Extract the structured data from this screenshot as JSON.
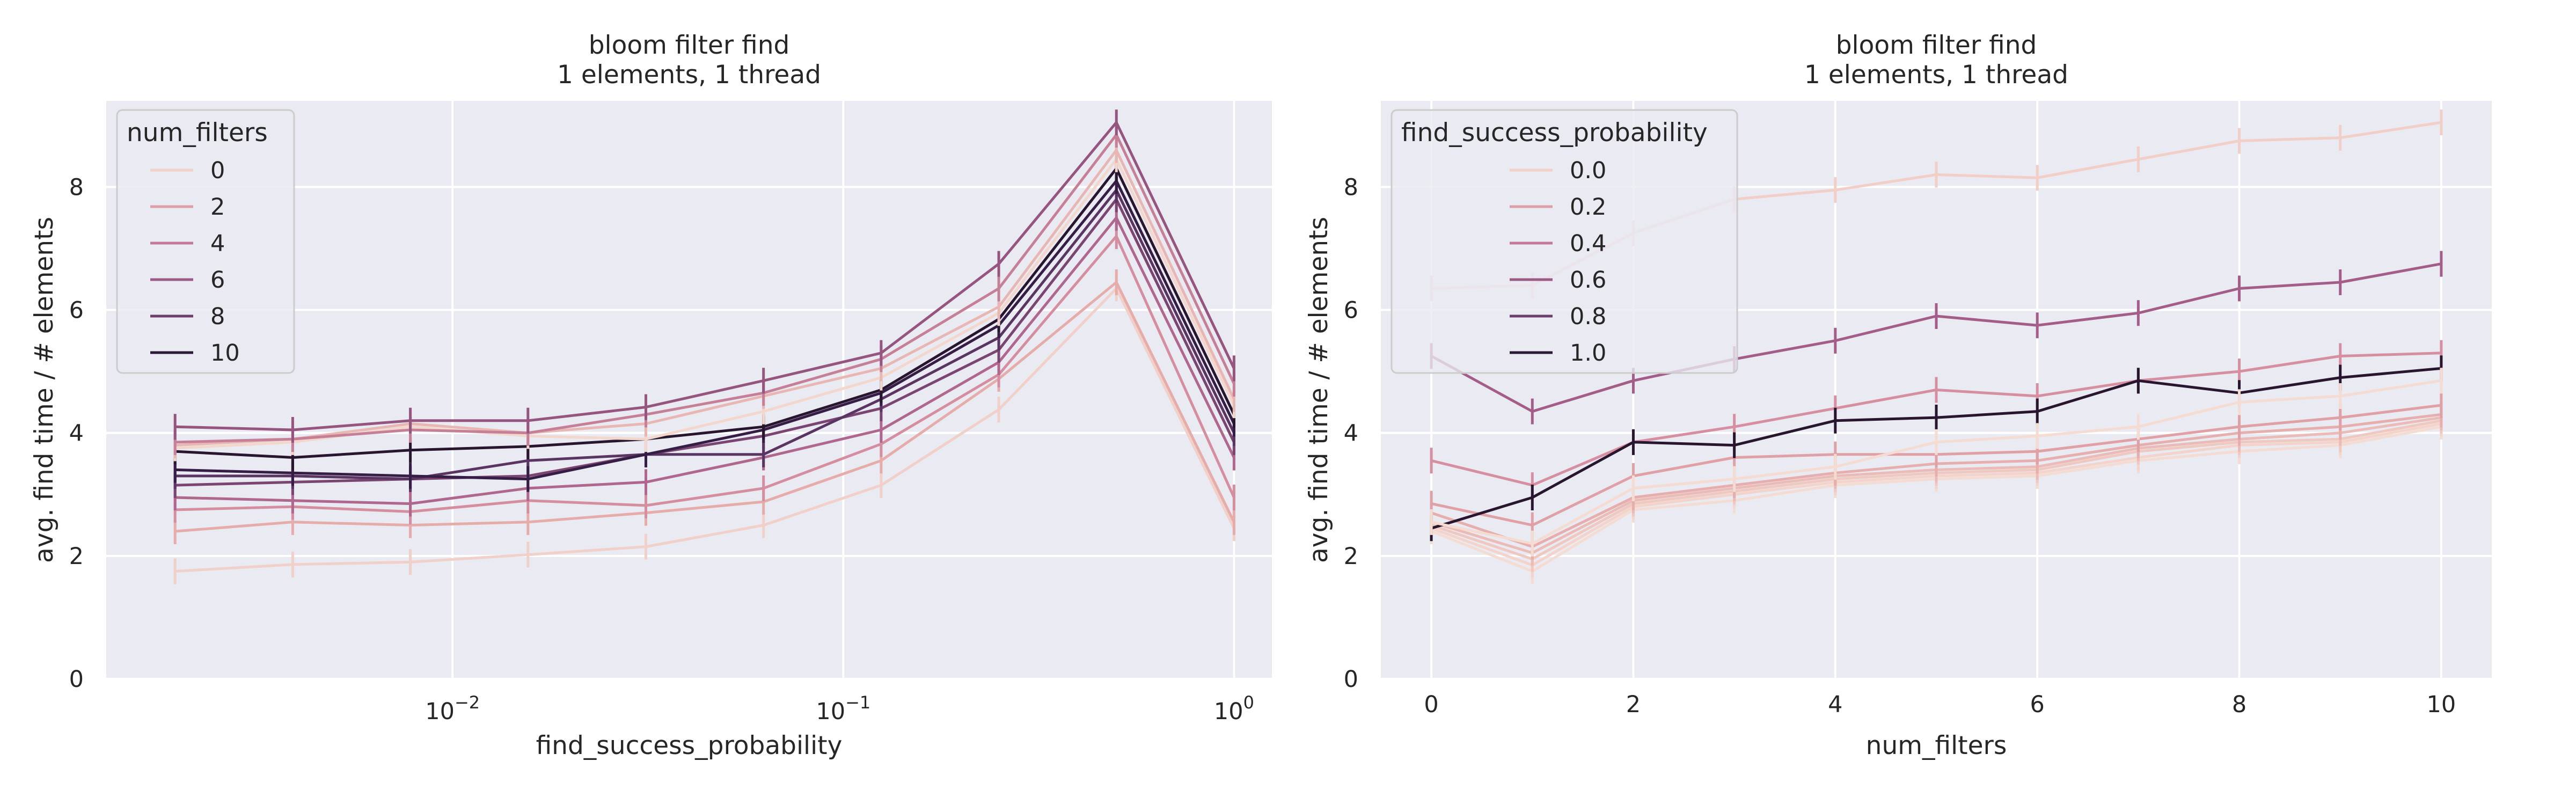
{
  "chart_data": [
    {
      "type": "line",
      "title": [
        "bloom filter find",
        "1 elements, 1 thread"
      ],
      "xlabel": "find_success_probability",
      "ylabel": "avg. find time / # elements",
      "xscale": "log",
      "xlim": [
        0.0013,
        1.25
      ],
      "ylim": [
        0,
        9.4
      ],
      "xticks": [
        {
          "value": 0.01,
          "base": "10",
          "exp": "−2"
        },
        {
          "value": 0.1,
          "base": "10",
          "exp": "−1"
        },
        {
          "value": 1,
          "base": "10",
          "exp": "0"
        }
      ],
      "yticks": [
        0,
        2,
        4,
        6,
        8
      ],
      "grid": true,
      "legend": {
        "title": "num_filters",
        "placement": "top-left",
        "entries": [
          "0",
          "2",
          "4",
          "6",
          "8",
          "10"
        ]
      },
      "colors": [
        "#f0d0c8",
        "#e5acaa",
        "#d48ea0",
        "#b0678e",
        "#7b4572",
        "#5a3562",
        "#351d45",
        "#28162e",
        "#f3d7cd",
        "#e8b7b3",
        "#c58097",
        "#95557f"
      ],
      "x": [
        0.00195,
        0.0039,
        0.0078,
        0.0156,
        0.03125,
        0.0625,
        0.125,
        0.25,
        0.5,
        1
      ],
      "series": [
        {
          "values": [
            1.75,
            1.86,
            1.9,
            2.02,
            2.15,
            2.5,
            3.15,
            4.38,
            6.35,
            2.45
          ]
        },
        {
          "values": [
            2.4,
            2.55,
            2.5,
            2.55,
            2.7,
            2.88,
            3.55,
            4.88,
            6.45,
            2.55
          ]
        },
        {
          "values": [
            2.75,
            2.8,
            2.72,
            2.9,
            2.82,
            3.1,
            3.82,
            4.95,
            7.2,
            2.95
          ]
        },
        {
          "values": [
            2.95,
            2.9,
            2.85,
            3.1,
            3.2,
            3.6,
            4.05,
            5.15,
            7.5,
            3.6
          ]
        },
        {
          "values": [
            3.15,
            3.2,
            3.25,
            3.3,
            3.65,
            3.95,
            4.4,
            5.35,
            7.8,
            3.85
          ]
        },
        {
          "values": [
            3.3,
            3.3,
            3.25,
            3.55,
            3.65,
            3.65,
            4.55,
            5.55,
            7.95,
            4.0
          ]
        },
        {
          "values": [
            3.4,
            3.35,
            3.3,
            3.25,
            3.65,
            4.05,
            4.65,
            5.75,
            8.1,
            4.15
          ]
        },
        {
          "values": [
            3.7,
            3.6,
            3.72,
            3.78,
            3.9,
            4.1,
            4.7,
            5.85,
            8.3,
            4.3
          ]
        },
        {
          "values": [
            3.75,
            3.85,
            4.1,
            3.95,
            3.9,
            4.35,
            4.9,
            5.95,
            8.45,
            4.45
          ]
        },
        {
          "values": [
            3.8,
            3.9,
            4.15,
            4.0,
            4.15,
            4.6,
            5.05,
            6.05,
            8.6,
            4.55
          ]
        },
        {
          "values": [
            3.85,
            3.9,
            4.05,
            4.0,
            4.3,
            4.65,
            5.2,
            6.35,
            8.85,
            4.8
          ]
        },
        {
          "values": [
            4.1,
            4.05,
            4.2,
            4.2,
            4.42,
            4.85,
            5.3,
            6.75,
            9.05,
            5.05
          ]
        }
      ]
    },
    {
      "type": "line",
      "title": [
        "bloom filter find",
        "1 elements, 1 thread"
      ],
      "xlabel": "num_filters",
      "ylabel": "avg. find time / # elements",
      "xscale": "linear",
      "xlim": [
        -0.5,
        10.5
      ],
      "ylim": [
        0,
        9.4
      ],
      "xticks": [
        0,
        2,
        4,
        6,
        8,
        10
      ],
      "yticks": [
        0,
        2,
        4,
        6,
        8
      ],
      "grid": true,
      "legend": {
        "title": "find_success_probability",
        "placement": "top-left",
        "entries": [
          "0.0",
          "0.2",
          "0.4",
          "0.6",
          "0.8",
          "1.0"
        ]
      },
      "colors": [
        "#f5dcd2",
        "#f3d3ca",
        "#efc8c0",
        "#ebbcb7",
        "#e6afae",
        "#dfa0a6",
        "#d58fa1",
        "#a45d88",
        "#28162e",
        "#f1cec6"
      ],
      "x": [
        0,
        1,
        2,
        3,
        4,
        5,
        6,
        7,
        8,
        9,
        10
      ],
      "series": [
        {
          "values": [
            2.4,
            1.75,
            2.75,
            2.9,
            3.15,
            3.25,
            3.3,
            3.55,
            3.7,
            3.8,
            4.1
          ]
        },
        {
          "values": [
            2.45,
            1.85,
            2.8,
            3.0,
            3.2,
            3.3,
            3.35,
            3.6,
            3.8,
            3.85,
            4.15
          ]
        },
        {
          "values": [
            2.5,
            1.95,
            2.85,
            3.05,
            3.25,
            3.35,
            3.4,
            3.7,
            3.85,
            3.9,
            4.2
          ]
        },
        {
          "values": [
            2.55,
            2.05,
            2.9,
            3.1,
            3.3,
            3.4,
            3.45,
            3.75,
            3.9,
            4.0,
            4.25
          ]
        },
        {
          "values": [
            2.7,
            2.15,
            2.95,
            3.15,
            3.35,
            3.5,
            3.55,
            3.8,
            4.0,
            4.1,
            4.3
          ]
        },
        {
          "values": [
            2.85,
            2.5,
            3.3,
            3.6,
            3.65,
            3.65,
            3.7,
            3.9,
            4.1,
            4.25,
            4.45
          ]
        },
        {
          "values": [
            3.55,
            3.15,
            3.85,
            4.1,
            4.4,
            4.7,
            4.6,
            4.85,
            5.0,
            5.25,
            5.3
          ]
        },
        {
          "values": [
            5.25,
            4.35,
            4.85,
            5.2,
            5.5,
            5.9,
            5.75,
            5.95,
            6.35,
            6.45,
            6.75
          ]
        },
        {
          "values": [
            2.45,
            2.95,
            3.85,
            3.8,
            4.2,
            4.25,
            4.35,
            4.85,
            4.65,
            4.9,
            5.05
          ]
        },
        {
          "values": [
            6.35,
            6.4,
            7.25,
            7.8,
            7.95,
            8.2,
            8.15,
            8.45,
            8.75,
            8.8,
            9.05
          ]
        },
        {
          "values": [
            2.55,
            2.2,
            3.1,
            3.25,
            3.45,
            3.85,
            3.95,
            4.1,
            4.5,
            4.6,
            4.85
          ]
        }
      ]
    }
  ]
}
